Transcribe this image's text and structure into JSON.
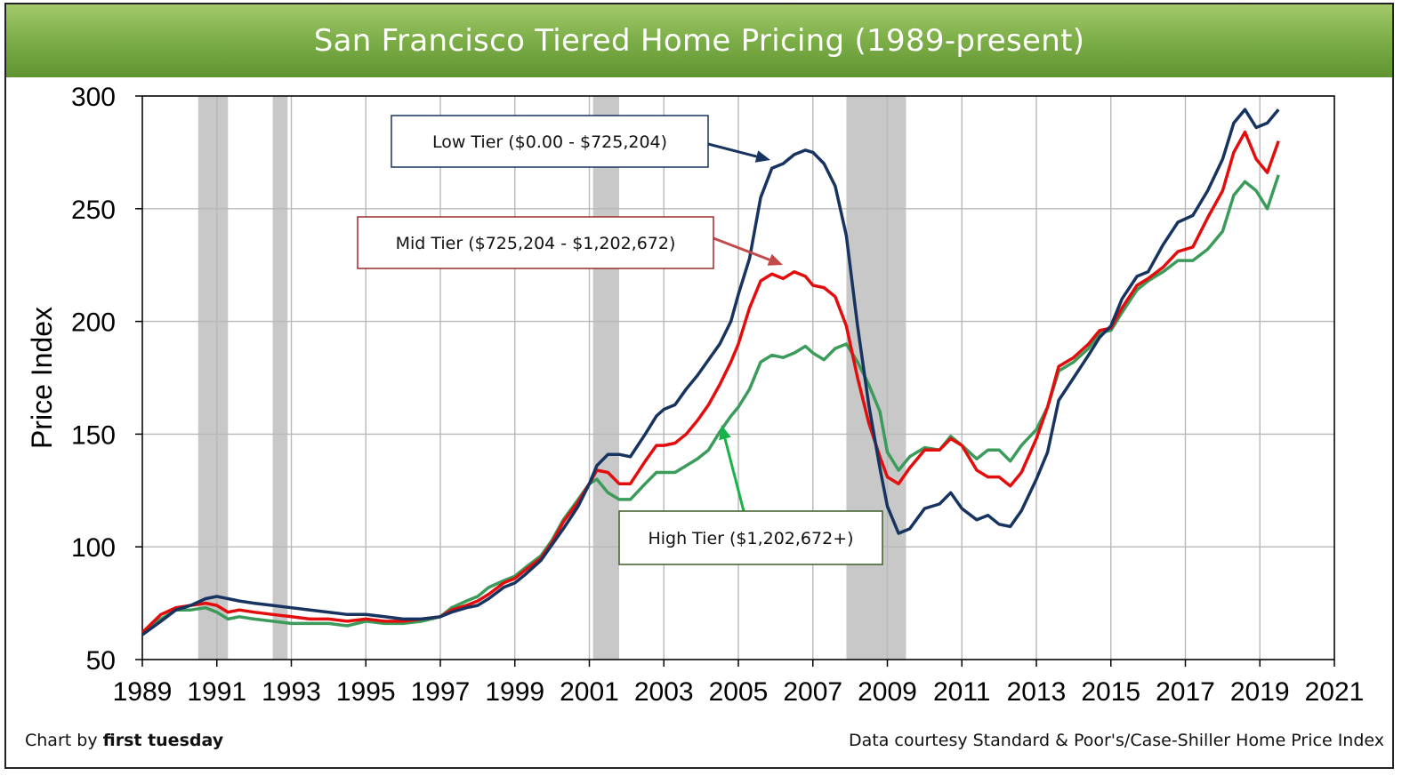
{
  "header": {
    "title": "San Francisco Tiered Home Pricing (1989-present)"
  },
  "footer": {
    "credit_prefix": "Chart by ",
    "credit_brand": "first tuesday",
    "source": "Data courtesy Standard & Poor's/Case-Shiller Home Price Index"
  },
  "colors": {
    "title_bar": "#7fb04a",
    "low": "#17335f",
    "mid": "#e30d0d",
    "high": "#3a9b5a",
    "recession": "#c8c8c8"
  },
  "chart_data": {
    "type": "line",
    "title": "San Francisco Tiered Home Pricing (1989-present)",
    "ylabel": "Price Index",
    "xlabel": "",
    "xlim": [
      1989,
      2021
    ],
    "ylim": [
      50,
      300
    ],
    "x_ticks": [
      1989,
      1991,
      1993,
      1995,
      1997,
      1999,
      2001,
      2003,
      2005,
      2007,
      2009,
      2011,
      2013,
      2015,
      2017,
      2019,
      2021
    ],
    "y_ticks": [
      50,
      100,
      150,
      200,
      250,
      300
    ],
    "grid": true,
    "recessions": [
      [
        1990.5,
        1991.3
      ],
      [
        1992.5,
        1992.9
      ],
      [
        2001.1,
        2001.8
      ],
      [
        2007.9,
        2009.5
      ]
    ],
    "annotations": [
      {
        "series": "Low Tier",
        "text": "Low Tier ($0.00 - $725,204)"
      },
      {
        "series": "Mid Tier",
        "text": "Mid Tier ($725,204 - $1,202,672)"
      },
      {
        "series": "High Tier",
        "text": "High Tier ($1,202,672+)"
      }
    ],
    "series": [
      {
        "name": "Low Tier",
        "points": [
          [
            1989.0,
            61
          ],
          [
            1989.5,
            67
          ],
          [
            1989.9,
            72
          ],
          [
            1990.3,
            74
          ],
          [
            1990.7,
            77
          ],
          [
            1991.0,
            78
          ],
          [
            1991.3,
            77
          ],
          [
            1991.6,
            76
          ],
          [
            1992.0,
            75
          ],
          [
            1992.5,
            74
          ],
          [
            1993.0,
            73
          ],
          [
            1993.5,
            72
          ],
          [
            1994.0,
            71
          ],
          [
            1994.5,
            70
          ],
          [
            1995.0,
            70
          ],
          [
            1995.5,
            69
          ],
          [
            1996.0,
            68
          ],
          [
            1996.5,
            68
          ],
          [
            1997.0,
            69
          ],
          [
            1997.3,
            71
          ],
          [
            1997.7,
            73
          ],
          [
            1998.0,
            74
          ],
          [
            1998.3,
            77
          ],
          [
            1998.7,
            82
          ],
          [
            1999.0,
            84
          ],
          [
            1999.3,
            88
          ],
          [
            1999.7,
            94
          ],
          [
            2000.0,
            101
          ],
          [
            2000.3,
            108
          ],
          [
            2000.7,
            118
          ],
          [
            2001.0,
            128
          ],
          [
            2001.2,
            136
          ],
          [
            2001.5,
            141
          ],
          [
            2001.8,
            141
          ],
          [
            2002.1,
            140
          ],
          [
            2002.5,
            150
          ],
          [
            2002.8,
            158
          ],
          [
            2003.0,
            161
          ],
          [
            2003.3,
            163
          ],
          [
            2003.6,
            170
          ],
          [
            2003.9,
            176
          ],
          [
            2004.2,
            183
          ],
          [
            2004.5,
            190
          ],
          [
            2004.8,
            200
          ],
          [
            2005.0,
            212
          ],
          [
            2005.3,
            228
          ],
          [
            2005.6,
            255
          ],
          [
            2005.9,
            268
          ],
          [
            2006.2,
            270
          ],
          [
            2006.5,
            274
          ],
          [
            2006.8,
            276
          ],
          [
            2007.0,
            275
          ],
          [
            2007.3,
            270
          ],
          [
            2007.6,
            260
          ],
          [
            2007.9,
            238
          ],
          [
            2008.2,
            198
          ],
          [
            2008.5,
            163
          ],
          [
            2008.8,
            135
          ],
          [
            2009.0,
            118
          ],
          [
            2009.3,
            106
          ],
          [
            2009.6,
            108
          ],
          [
            2010.0,
            117
          ],
          [
            2010.4,
            119
          ],
          [
            2010.7,
            124
          ],
          [
            2011.0,
            117
          ],
          [
            2011.4,
            112
          ],
          [
            2011.7,
            114
          ],
          [
            2012.0,
            110
          ],
          [
            2012.3,
            109
          ],
          [
            2012.6,
            116
          ],
          [
            2013.0,
            130
          ],
          [
            2013.3,
            142
          ],
          [
            2013.6,
            165
          ],
          [
            2014.0,
            175
          ],
          [
            2014.4,
            185
          ],
          [
            2014.7,
            193
          ],
          [
            2015.0,
            198
          ],
          [
            2015.3,
            210
          ],
          [
            2015.7,
            220
          ],
          [
            2016.0,
            222
          ],
          [
            2016.4,
            234
          ],
          [
            2016.8,
            244
          ],
          [
            2017.2,
            247
          ],
          [
            2017.6,
            258
          ],
          [
            2018.0,
            272
          ],
          [
            2018.3,
            288
          ],
          [
            2018.6,
            294
          ],
          [
            2018.9,
            286
          ],
          [
            2019.2,
            288
          ],
          [
            2019.5,
            294
          ]
        ]
      },
      {
        "name": "Mid Tier",
        "points": [
          [
            1989.0,
            62
          ],
          [
            1989.5,
            70
          ],
          [
            1989.9,
            73
          ],
          [
            1990.3,
            74
          ],
          [
            1990.7,
            75
          ],
          [
            1991.0,
            74
          ],
          [
            1991.3,
            71
          ],
          [
            1991.6,
            72
          ],
          [
            1992.0,
            71
          ],
          [
            1992.5,
            70
          ],
          [
            1993.0,
            69
          ],
          [
            1993.5,
            68
          ],
          [
            1994.0,
            68
          ],
          [
            1994.5,
            67
          ],
          [
            1995.0,
            68
          ],
          [
            1995.5,
            67
          ],
          [
            1996.0,
            67
          ],
          [
            1996.5,
            68
          ],
          [
            1997.0,
            69
          ],
          [
            1997.3,
            72
          ],
          [
            1997.7,
            74
          ],
          [
            1998.0,
            76
          ],
          [
            1998.3,
            79
          ],
          [
            1998.7,
            84
          ],
          [
            1999.0,
            86
          ],
          [
            1999.3,
            90
          ],
          [
            1999.7,
            95
          ],
          [
            2000.0,
            102
          ],
          [
            2000.3,
            111
          ],
          [
            2000.7,
            120
          ],
          [
            2001.0,
            128
          ],
          [
            2001.2,
            134
          ],
          [
            2001.5,
            133
          ],
          [
            2001.8,
            128
          ],
          [
            2002.1,
            128
          ],
          [
            2002.5,
            138
          ],
          [
            2002.8,
            145
          ],
          [
            2003.0,
            145
          ],
          [
            2003.3,
            146
          ],
          [
            2003.6,
            150
          ],
          [
            2003.9,
            156
          ],
          [
            2004.2,
            163
          ],
          [
            2004.5,
            172
          ],
          [
            2004.8,
            182
          ],
          [
            2005.0,
            190
          ],
          [
            2005.3,
            206
          ],
          [
            2005.6,
            218
          ],
          [
            2005.9,
            221
          ],
          [
            2006.2,
            219
          ],
          [
            2006.5,
            222
          ],
          [
            2006.8,
            220
          ],
          [
            2007.0,
            216
          ],
          [
            2007.3,
            215
          ],
          [
            2007.6,
            211
          ],
          [
            2007.9,
            198
          ],
          [
            2008.2,
            175
          ],
          [
            2008.5,
            155
          ],
          [
            2008.8,
            140
          ],
          [
            2009.0,
            131
          ],
          [
            2009.3,
            128
          ],
          [
            2009.6,
            135
          ],
          [
            2010.0,
            143
          ],
          [
            2010.4,
            143
          ],
          [
            2010.7,
            148
          ],
          [
            2011.0,
            145
          ],
          [
            2011.4,
            134
          ],
          [
            2011.7,
            131
          ],
          [
            2012.0,
            131
          ],
          [
            2012.3,
            127
          ],
          [
            2012.6,
            133
          ],
          [
            2013.0,
            148
          ],
          [
            2013.3,
            162
          ],
          [
            2013.6,
            180
          ],
          [
            2014.0,
            184
          ],
          [
            2014.4,
            190
          ],
          [
            2014.7,
            196
          ],
          [
            2015.0,
            197
          ],
          [
            2015.3,
            206
          ],
          [
            2015.7,
            216
          ],
          [
            2016.0,
            219
          ],
          [
            2016.4,
            224
          ],
          [
            2016.8,
            231
          ],
          [
            2017.2,
            233
          ],
          [
            2017.6,
            246
          ],
          [
            2018.0,
            258
          ],
          [
            2018.3,
            275
          ],
          [
            2018.6,
            284
          ],
          [
            2018.9,
            272
          ],
          [
            2019.2,
            266
          ],
          [
            2019.5,
            280
          ]
        ]
      },
      {
        "name": "High Tier",
        "points": [
          [
            1989.0,
            62
          ],
          [
            1989.5,
            68
          ],
          [
            1989.9,
            72
          ],
          [
            1990.3,
            72
          ],
          [
            1990.7,
            73
          ],
          [
            1991.0,
            71
          ],
          [
            1991.3,
            68
          ],
          [
            1991.6,
            69
          ],
          [
            1992.0,
            68
          ],
          [
            1992.5,
            67
          ],
          [
            1993.0,
            66
          ],
          [
            1993.5,
            66
          ],
          [
            1994.0,
            66
          ],
          [
            1994.5,
            65
          ],
          [
            1995.0,
            67
          ],
          [
            1995.5,
            66
          ],
          [
            1996.0,
            66
          ],
          [
            1996.5,
            67
          ],
          [
            1997.0,
            69
          ],
          [
            1997.3,
            73
          ],
          [
            1997.7,
            76
          ],
          [
            1998.0,
            78
          ],
          [
            1998.3,
            82
          ],
          [
            1998.7,
            85
          ],
          [
            1999.0,
            87
          ],
          [
            1999.3,
            91
          ],
          [
            1999.7,
            96
          ],
          [
            2000.0,
            103
          ],
          [
            2000.3,
            112
          ],
          [
            2000.7,
            121
          ],
          [
            2001.0,
            128
          ],
          [
            2001.2,
            130
          ],
          [
            2001.5,
            124
          ],
          [
            2001.8,
            121
          ],
          [
            2002.1,
            121
          ],
          [
            2002.5,
            128
          ],
          [
            2002.8,
            133
          ],
          [
            2003.0,
            133
          ],
          [
            2003.3,
            133
          ],
          [
            2003.6,
            136
          ],
          [
            2003.9,
            139
          ],
          [
            2004.2,
            143
          ],
          [
            2004.5,
            151
          ],
          [
            2004.8,
            158
          ],
          [
            2005.0,
            162
          ],
          [
            2005.3,
            170
          ],
          [
            2005.6,
            182
          ],
          [
            2005.9,
            185
          ],
          [
            2006.2,
            184
          ],
          [
            2006.5,
            186
          ],
          [
            2006.8,
            189
          ],
          [
            2007.0,
            186
          ],
          [
            2007.3,
            183
          ],
          [
            2007.6,
            188
          ],
          [
            2007.9,
            190
          ],
          [
            2008.2,
            182
          ],
          [
            2008.5,
            172
          ],
          [
            2008.8,
            160
          ],
          [
            2009.0,
            142
          ],
          [
            2009.3,
            134
          ],
          [
            2009.6,
            140
          ],
          [
            2010.0,
            144
          ],
          [
            2010.4,
            143
          ],
          [
            2010.7,
            149
          ],
          [
            2011.0,
            145
          ],
          [
            2011.4,
            139
          ],
          [
            2011.7,
            143
          ],
          [
            2012.0,
            143
          ],
          [
            2012.3,
            138
          ],
          [
            2012.6,
            145
          ],
          [
            2013.0,
            152
          ],
          [
            2013.3,
            162
          ],
          [
            2013.6,
            178
          ],
          [
            2014.0,
            182
          ],
          [
            2014.4,
            188
          ],
          [
            2014.7,
            195
          ],
          [
            2015.0,
            196
          ],
          [
            2015.3,
            204
          ],
          [
            2015.7,
            214
          ],
          [
            2016.0,
            218
          ],
          [
            2016.4,
            222
          ],
          [
            2016.8,
            227
          ],
          [
            2017.2,
            227
          ],
          [
            2017.6,
            232
          ],
          [
            2018.0,
            240
          ],
          [
            2018.3,
            256
          ],
          [
            2018.6,
            262
          ],
          [
            2018.9,
            258
          ],
          [
            2019.2,
            250
          ],
          [
            2019.5,
            265
          ]
        ]
      }
    ]
  }
}
